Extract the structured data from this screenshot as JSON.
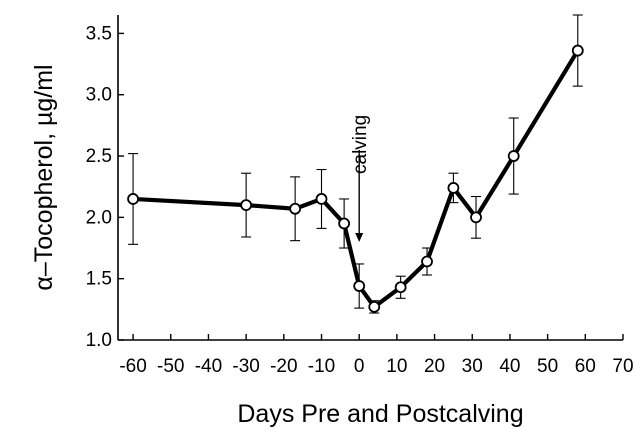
{
  "chart_data": {
    "type": "line",
    "title": "",
    "xlabel": "Days Pre and Postcalving",
    "ylabel": "α–Tocopherol, µg/ml",
    "xlim": [
      -64,
      70
    ],
    "ylim": [
      1.0,
      3.65
    ],
    "xticks": [
      -60,
      -50,
      -40,
      -30,
      -20,
      -10,
      0,
      10,
      20,
      30,
      40,
      50,
      60,
      70
    ],
    "yticks": [
      1.0,
      1.5,
      2.0,
      2.5,
      3.0,
      3.5
    ],
    "ytick_labels": [
      "1.0",
      "1.5",
      "2.0",
      "2.5",
      "3.0",
      "3.5"
    ],
    "grid": false,
    "legend": "none",
    "series": [
      {
        "x": [
          -60,
          -30,
          -17,
          -10,
          -4,
          0,
          4,
          11,
          18,
          25,
          31,
          41,
          58
        ],
        "y": [
          2.15,
          2.1,
          2.07,
          2.15,
          1.95,
          1.44,
          1.27,
          1.43,
          1.64,
          2.24,
          2.0,
          2.5,
          3.36
        ],
        "err": [
          0.37,
          0.26,
          0.26,
          0.24,
          0.2,
          0.18,
          0.05,
          0.09,
          0.11,
          0.12,
          0.17,
          0.31,
          0.29
        ],
        "color": "#000000"
      }
    ],
    "annotations": [
      {
        "text": "calving",
        "x": 0,
        "arrow": "down"
      }
    ]
  }
}
